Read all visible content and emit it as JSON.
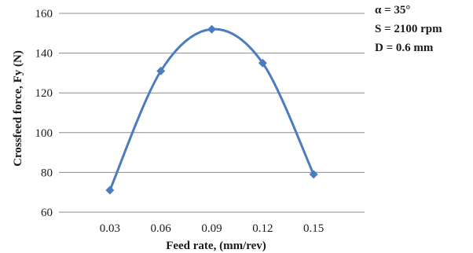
{
  "chart_data": {
    "type": "line",
    "x": [
      "0.03",
      "0.06",
      "0.09",
      "0.12",
      "0.15"
    ],
    "series": [
      {
        "values": [
          71,
          131,
          152,
          135,
          79
        ],
        "color": "#4a7cbf",
        "marker": "diamond",
        "smooth": true
      }
    ],
    "xlabel": "Feed rate, (mm/rev)",
    "ylabel": "Crossfeed force, Fy (N)",
    "ylim": [
      60,
      160
    ],
    "yticks": [
      "60",
      "80",
      "100",
      "120",
      "140",
      "160"
    ],
    "grid": "horizontal",
    "annotations": [
      "α = 35°",
      "S = 2100 rpm",
      "D = 0.6 mm"
    ]
  }
}
